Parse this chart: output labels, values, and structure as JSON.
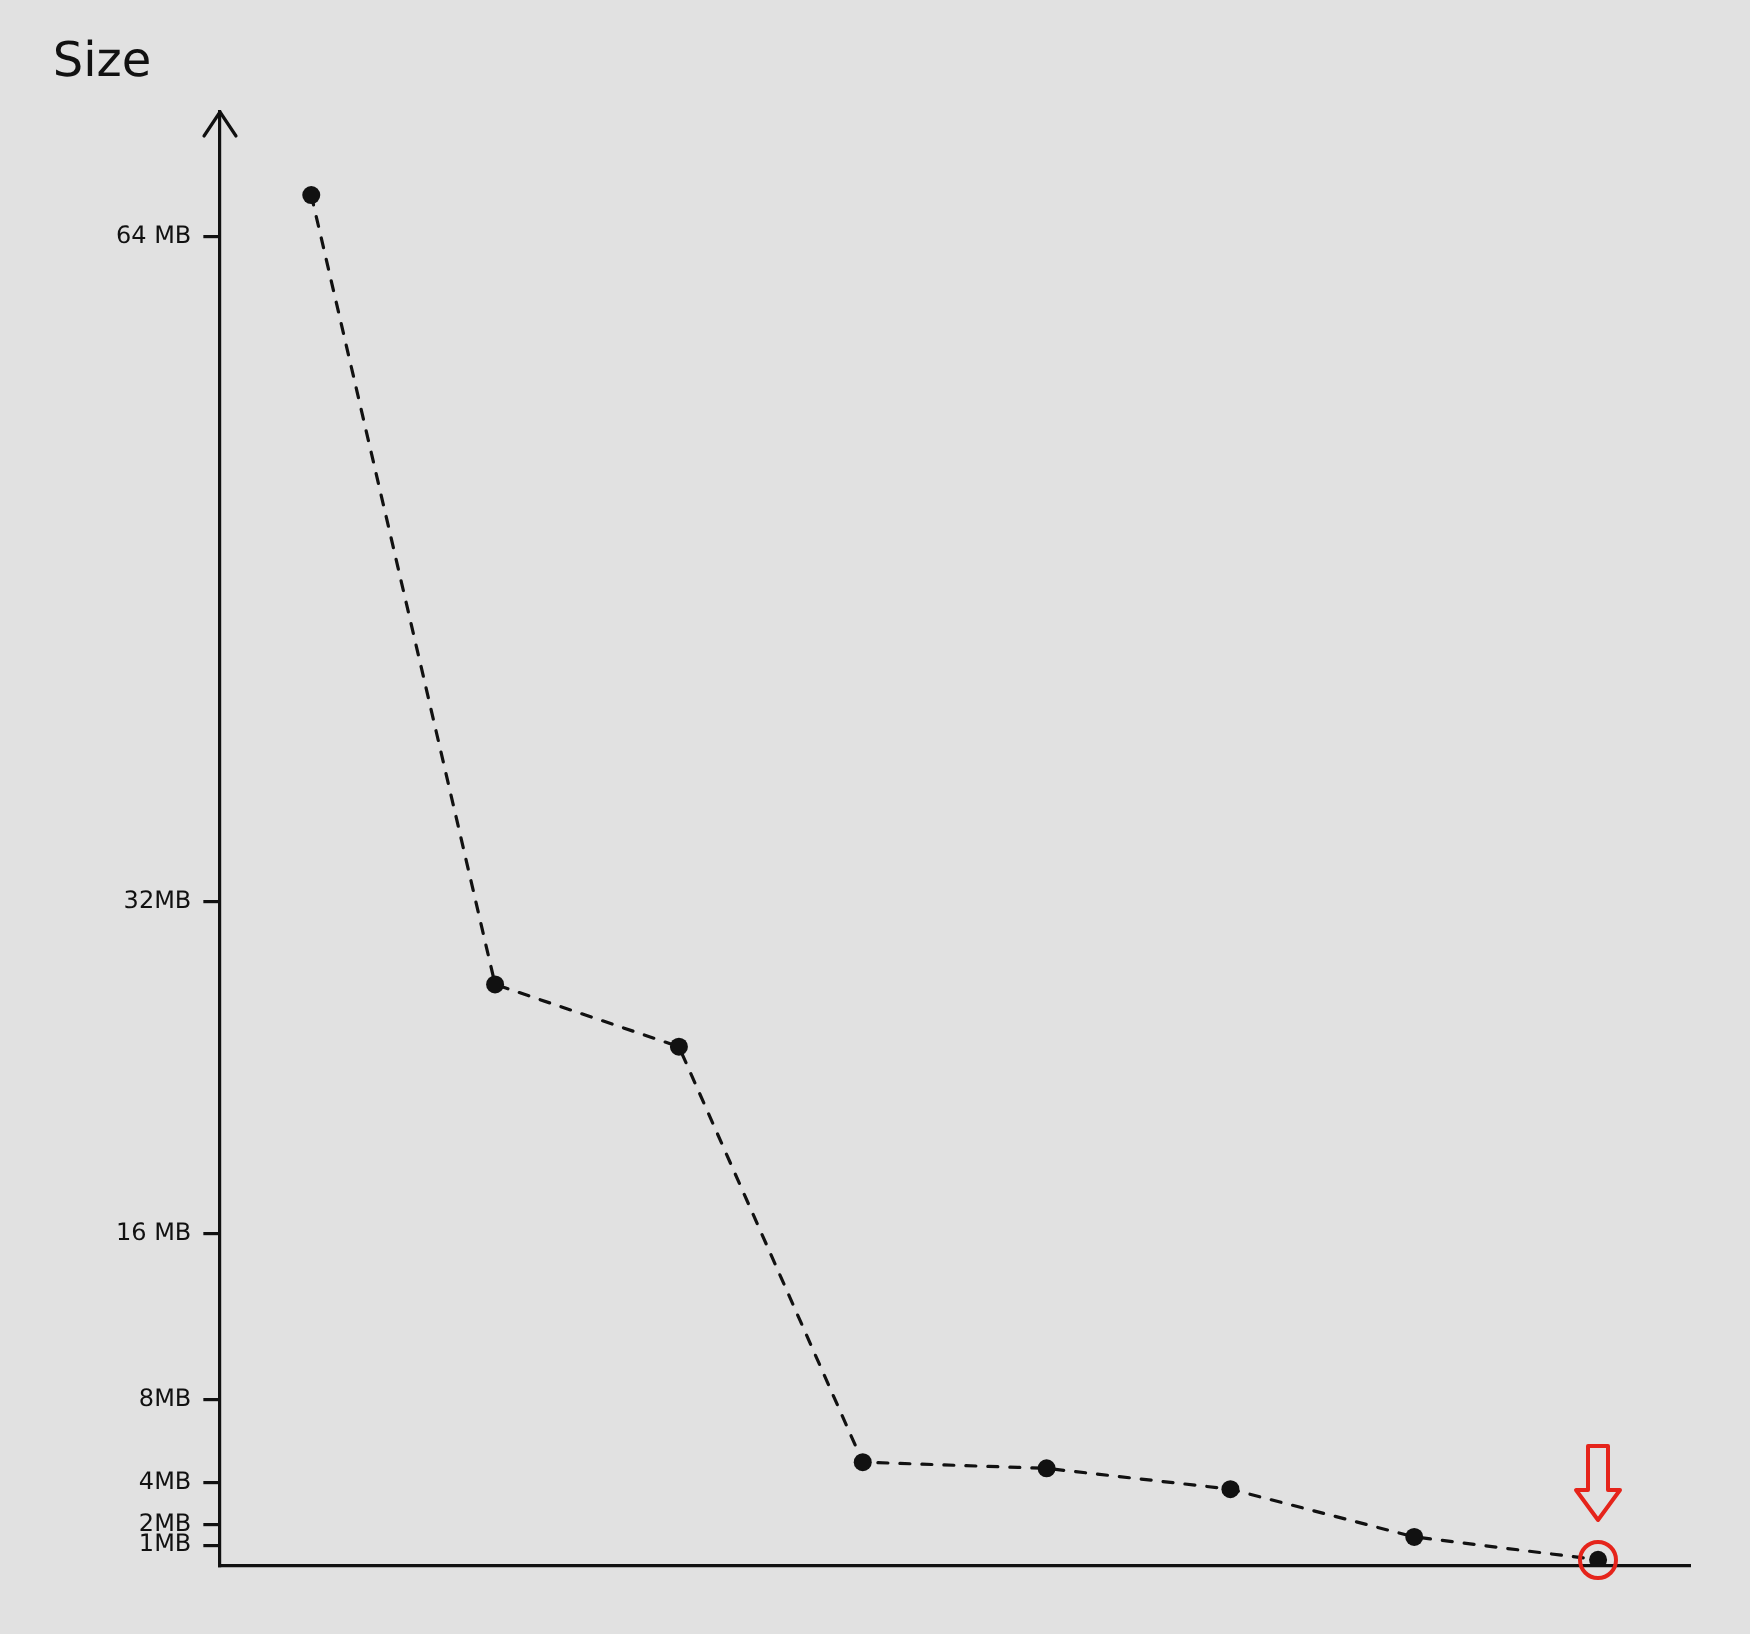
{
  "chart_data": {
    "type": "line",
    "ylabel": "Size",
    "categories": [
      null,
      null,
      null,
      null,
      null,
      null,
      null,
      null
    ],
    "series": [
      {
        "color": "#111111",
        "values": [
          66,
          28,
          25,
          5,
          4.7,
          3.7,
          1.4,
          0.3
        ]
      }
    ],
    "ylim": [
      0,
      70
    ],
    "yticks": [
      {
        "value": 64,
        "label": "64 MB"
      },
      {
        "value": 32,
        "label": "32MB"
      },
      {
        "value": 16,
        "label": "16 MB"
      },
      {
        "value": 8,
        "label": "8MB"
      },
      {
        "value": 4,
        "label": "4MB"
      },
      {
        "value": 2,
        "label": "2MB"
      },
      {
        "value": 1,
        "label": "1MB"
      }
    ],
    "grid": false,
    "tick_labels": "y",
    "marker": "circle",
    "line_style": "dashed"
  }
}
